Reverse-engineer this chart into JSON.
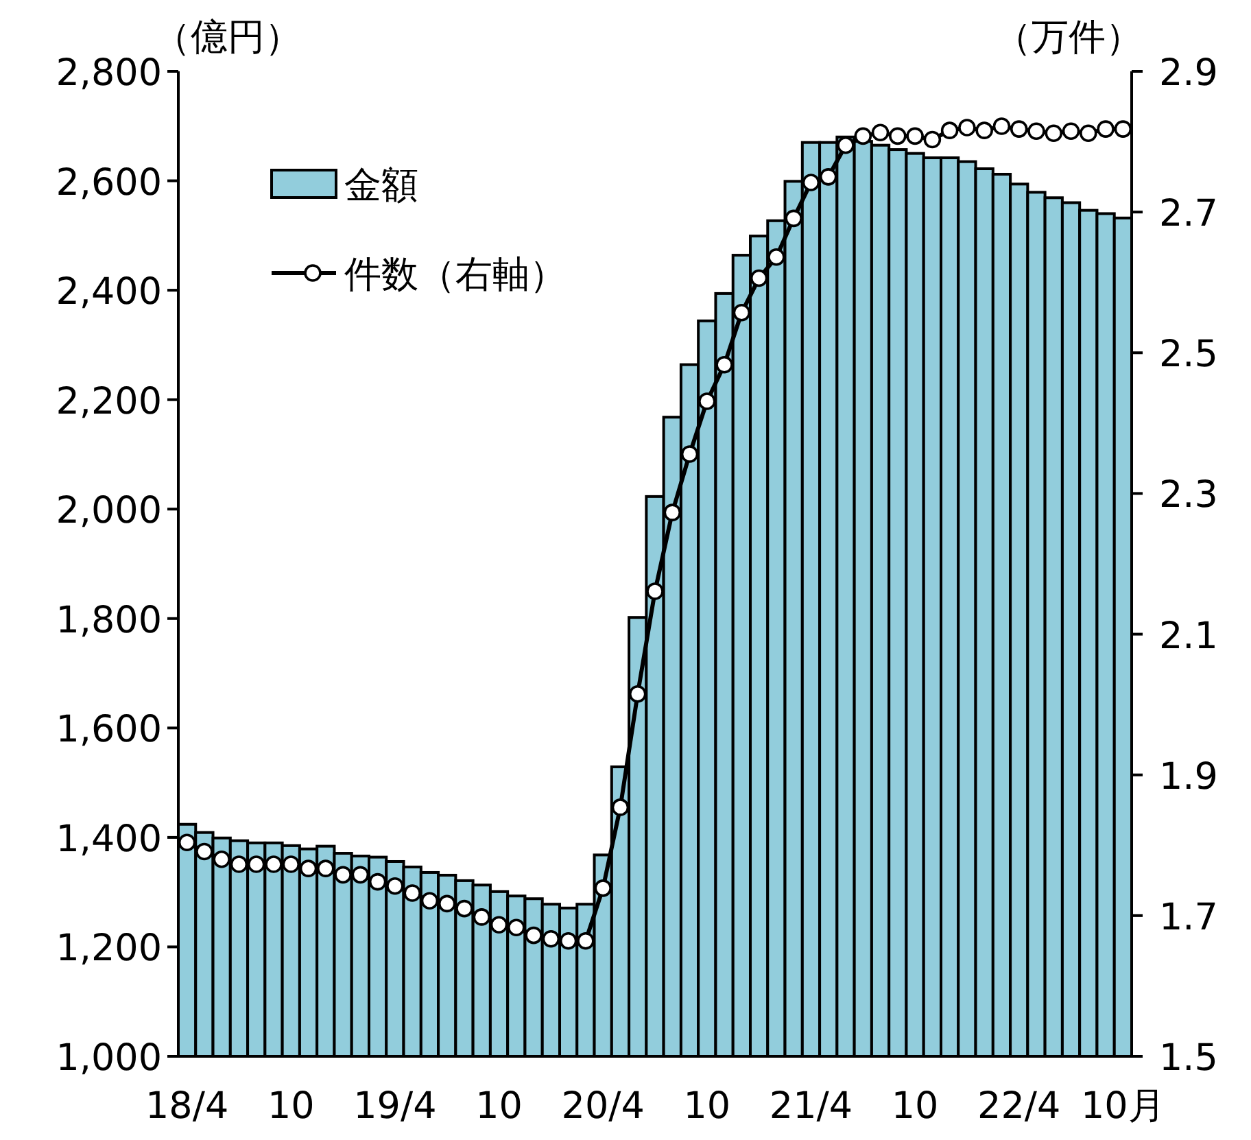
{
  "chart_data": {
    "type": "bar",
    "ylabel": "（億円）",
    "y2label": "（万件）",
    "categories": [
      "18/4",
      null,
      null,
      null,
      null,
      null,
      "10",
      null,
      null,
      null,
      null,
      null,
      "19/4",
      null,
      null,
      null,
      null,
      null,
      "10",
      null,
      null,
      null,
      null,
      null,
      "20/4",
      null,
      null,
      null,
      null,
      null,
      "10",
      null,
      null,
      null,
      null,
      null,
      "21/4",
      null,
      null,
      null,
      null,
      null,
      "10",
      null,
      null,
      null,
      null,
      null,
      "22/4",
      null,
      null,
      null,
      null,
      null,
      "10月"
    ],
    "series": [
      {
        "name": "金額",
        "color": "#92cddc",
        "values": [
          1424,
          1409,
          1399,
          1394,
          1390,
          1390,
          1385,
          1379,
          1384,
          1371,
          1366,
          1364,
          1356,
          1346,
          1336,
          1331,
          1321,
          1313,
          1301,
          1293,
          1288,
          1278,
          1271,
          1278,
          1368,
          1529,
          1802,
          2023,
          2168,
          2264,
          2344,
          2394,
          2464,
          2499,
          2527,
          2599,
          2670,
          2670,
          2680,
          2672,
          2665,
          2657,
          2650,
          2642,
          2642,
          2635,
          2622,
          2612,
          2594,
          2579,
          2569,
          2560,
          2546,
          2540,
          2532
        ]
      },
      {
        "name": "件数（右軸）",
        "type": "line",
        "axis": "y2",
        "color": "#000000",
        "marker": "circle",
        "values": [
          1.804,
          1.791,
          1.78,
          1.773,
          1.773,
          1.773,
          1.773,
          1.767,
          1.767,
          1.758,
          1.758,
          1.748,
          1.742,
          1.732,
          1.721,
          1.717,
          1.71,
          1.698,
          1.687,
          1.683,
          1.672,
          1.667,
          1.664,
          1.664,
          1.739,
          1.854,
          2.015,
          2.161,
          2.273,
          2.356,
          2.431,
          2.483,
          2.557,
          2.606,
          2.636,
          2.691,
          2.742,
          2.75,
          2.795,
          2.808,
          2.813,
          2.808,
          2.808,
          2.803,
          2.816,
          2.82,
          2.816,
          2.822,
          2.818,
          2.815,
          2.812,
          2.815,
          2.812,
          2.818,
          2.818
        ]
      }
    ],
    "ylim": [
      1000,
      2800
    ],
    "yticks": [
      {
        "value": 1000,
        "label": "1,000"
      },
      {
        "value": 1200,
        "label": "1,200"
      },
      {
        "value": 1400,
        "label": "1,400"
      },
      {
        "value": 1600,
        "label": "1,600"
      },
      {
        "value": 1800,
        "label": "1,800"
      },
      {
        "value": 2000,
        "label": "2,000"
      },
      {
        "value": 2200,
        "label": "2,200"
      },
      {
        "value": 2400,
        "label": "2,400"
      },
      {
        "value": 2600,
        "label": "2,600"
      },
      {
        "value": 2800,
        "label": "2,800"
      }
    ],
    "y2lim": [
      1.5,
      2.9
    ],
    "y2ticks": [
      1.5,
      1.7,
      1.9,
      2.1,
      2.3,
      2.5,
      2.7,
      2.9
    ],
    "legend": "top left",
    "grid": false
  }
}
